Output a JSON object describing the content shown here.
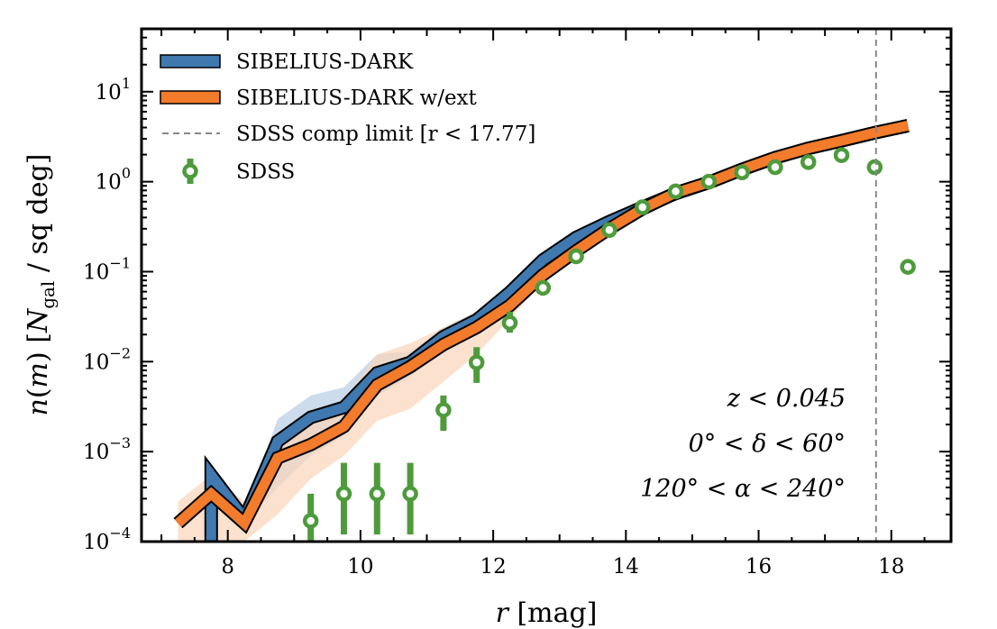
{
  "chart_data": {
    "type": "line",
    "xlabel": "r [mag]",
    "ylabel": "n(m) [N_gal / sq deg]",
    "xlim": [
      6.7,
      18.9
    ],
    "ylim": [
      0.0001,
      50
    ],
    "yscale": "log",
    "x_ticks": [
      8,
      10,
      12,
      14,
      16,
      18
    ],
    "y_ticks": [
      {
        "value": 0.0001,
        "base": "10",
        "exp": "−4"
      },
      {
        "value": 0.001,
        "base": "10",
        "exp": "−3"
      },
      {
        "value": 0.01,
        "base": "10",
        "exp": "−2"
      },
      {
        "value": 0.1,
        "base": "10",
        "exp": "−1"
      },
      {
        "value": 1,
        "base": "10",
        "exp": "0"
      },
      {
        "value": 10,
        "base": "10",
        "exp": "1"
      }
    ],
    "legend_position": "top-left",
    "legend": [
      {
        "label": "SIBELIUS-DARK",
        "kind": "band",
        "color": "#3f79b0"
      },
      {
        "label": "SIBELIUS-DARK w/ext",
        "kind": "band",
        "color": "#f27b2c"
      },
      {
        "label": "SDSS comp limit [r < 17.77]",
        "kind": "dashed",
        "color": "#888888"
      },
      {
        "label": "SDSS",
        "kind": "errorpoint",
        "color": "#4e9b3c"
      }
    ],
    "comp_limit": 17.77,
    "annotations": [
      "z < 0.045",
      "0° < δ < 60°",
      "120° < α < 240°"
    ],
    "series": [
      {
        "name": "SIBELIUS-DARK",
        "color": "#3f79b0",
        "band_color": "#b8cde6",
        "x": [
          7.75,
          8.25,
          8.75,
          9.25,
          9.75,
          10.25,
          10.75,
          11.25,
          11.75,
          12.25,
          12.75,
          13.25,
          13.75,
          14.25,
          14.75,
          15.25,
          15.75,
          16.25,
          16.75,
          17.25,
          17.75,
          18.25
        ],
        "y": [
          0.00055,
          0.00018,
          0.0013,
          0.0024,
          0.0031,
          0.0075,
          0.0098,
          0.019,
          0.029,
          0.059,
          0.135,
          0.24,
          0.36,
          0.52,
          0.74,
          0.98,
          1.37,
          1.85,
          2.35,
          2.85,
          3.5,
          4.2
        ],
        "band_lo": [
          null,
          0.00016,
          0.0004,
          0.0009,
          0.0015,
          0.0042,
          0.0068,
          0.014,
          0.022,
          0.05,
          0.12,
          0.22,
          0.33,
          0.5,
          0.72,
          0.96,
          1.34,
          1.82,
          2.32,
          2.82,
          3.45,
          4.1
        ],
        "band_hi": [
          null,
          0.0002,
          0.0023,
          0.0042,
          0.0052,
          0.012,
          0.013,
          0.024,
          0.036,
          0.066,
          0.148,
          0.26,
          0.38,
          0.54,
          0.76,
          1.0,
          1.4,
          1.88,
          2.4,
          2.9,
          3.55,
          4.3
        ]
      },
      {
        "name": "SIBELIUS-DARK w/ext",
        "color": "#f27b2c",
        "band_color": "#f9d4b9",
        "x": [
          7.25,
          7.75,
          8.25,
          8.75,
          9.25,
          9.75,
          10.25,
          10.75,
          11.25,
          11.75,
          12.25,
          12.75,
          13.25,
          13.75,
          14.25,
          14.75,
          15.25,
          15.75,
          16.25,
          16.75,
          17.25,
          17.75,
          18.25
        ],
        "y": [
          0.00016,
          0.00034,
          0.00016,
          0.00085,
          0.0012,
          0.0019,
          0.0055,
          0.0088,
          0.0155,
          0.024,
          0.042,
          0.092,
          0.17,
          0.3,
          0.5,
          0.75,
          0.98,
          1.37,
          1.85,
          2.35,
          2.85,
          3.5,
          4.2
        ],
        "band_lo": [
          0.0001,
          0.0001,
          0.0001,
          0.0002,
          0.0005,
          0.0009,
          0.0022,
          0.003,
          0.006,
          0.012,
          0.03,
          0.075,
          0.15,
          0.28,
          0.48,
          0.73,
          0.96,
          1.34,
          1.82,
          2.32,
          2.82,
          3.45,
          4.1
        ],
        "band_hi": [
          0.00028,
          0.00055,
          0.00028,
          0.0015,
          0.0025,
          0.0038,
          0.012,
          0.016,
          0.024,
          0.036,
          0.058,
          0.12,
          0.2,
          0.34,
          0.53,
          0.78,
          1.0,
          1.4,
          1.88,
          2.4,
          2.9,
          3.55,
          4.3
        ]
      }
    ],
    "points": {
      "name": "SDSS",
      "color": "#4e9b3c",
      "x": [
        9.25,
        9.75,
        10.25,
        10.75,
        11.25,
        11.75,
        12.25,
        12.75,
        13.25,
        13.75,
        14.25,
        14.75,
        15.25,
        15.75,
        16.25,
        16.75,
        17.25,
        17.75,
        18.25
      ],
      "y": [
        0.00017,
        0.00034,
        0.00034,
        0.00034,
        0.0029,
        0.0098,
        0.027,
        0.066,
        0.148,
        0.29,
        0.52,
        0.78,
        1.0,
        1.27,
        1.45,
        1.65,
        1.97,
        1.45,
        0.113
      ],
      "err_lo": [
        0.0001,
        0.00012,
        0.00012,
        0.00012,
        0.0017,
        0.0058,
        0.021,
        null,
        null,
        null,
        null,
        null,
        null,
        null,
        null,
        null,
        null,
        null,
        null
      ],
      "err_hi": [
        0.00034,
        0.00075,
        0.00075,
        0.00075,
        0.0042,
        0.0145,
        0.036,
        null,
        null,
        null,
        null,
        null,
        null,
        null,
        null,
        null,
        null,
        null,
        null
      ]
    }
  }
}
